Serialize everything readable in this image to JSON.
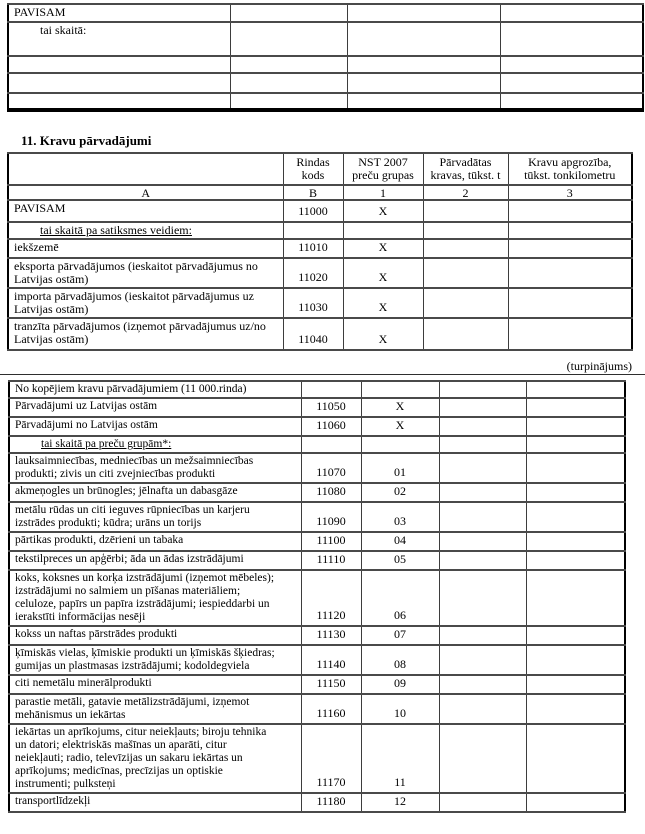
{
  "page": {
    "continuation_note": "(turpinājums)"
  },
  "top_table": {
    "rows": [
      {
        "label": "PAVISAM"
      },
      {
        "label": "tai skaitā:",
        "bold": true,
        "indent": 1
      },
      {
        "label": ""
      },
      {
        "label": ""
      },
      {
        "label": ""
      }
    ]
  },
  "section": {
    "title": "11. Kravu pārvadājumi"
  },
  "main_table": {
    "column_headers": [
      "",
      "Rindas\nkods",
      "NST 2007\npreču grupas",
      "Pārvadātas\nkravas, tūkst. t",
      "Kravu apgrozība,\ntūkst. tonkilometru"
    ],
    "letter_row": [
      "A",
      "B",
      "1",
      "2",
      "3"
    ],
    "rows": [
      {
        "label": "PAVISAM",
        "code": "11000",
        "group": "X"
      },
      {
        "label": "tai skaitā pa satiksmes veidiem:",
        "underline": true,
        "indent": 1
      },
      {
        "label": "iekšzemē",
        "code": "11010",
        "group": "X"
      },
      {
        "label": "eksporta pārvadājumos (ieskaitot pārvadājumus no\nLatvijas ostām)",
        "code": "11020",
        "group": "X"
      },
      {
        "label": "importa pārvadājumos (ieskaitot pārvadājumus uz\nLatvijas ostām)",
        "code": "11030",
        "group": "X"
      },
      {
        "label": "tranzīta pārvadājumos (izņemot pārvadājumus uz/no\nLatvijas ostām)",
        "code": "11040",
        "group": "X"
      }
    ]
  },
  "continuation_table": {
    "rows": [
      {
        "label": "No kopējiem kravu pārvadājumiem (11 000.rinda)"
      },
      {
        "label": "Pārvadājumi uz Latvijas ostām",
        "code": "11050",
        "group": "X"
      },
      {
        "label": "Pārvadājumi no Latvijas ostām",
        "code": "11060",
        "group": "X"
      },
      {
        "label": "tai skaitā pa preču grupām*:",
        "underline": true,
        "indent": 1
      },
      {
        "label": "lauksaimniecības, medniecības un mežsaimniecības\nprodukti; zivis un citi zvejniecības produkti",
        "code": "11070",
        "group": "01"
      },
      {
        "label": "akmeņogles un brūnogles; jēlnafta un dabasgāze",
        "code": "11080",
        "group": "02"
      },
      {
        "label": "metālu rūdas un citi ieguves rūpniecības un karjeru\nizstrādes produkti; kūdra; urāns un torijs",
        "code": "11090",
        "group": "03"
      },
      {
        "label": "pārtikas produkti, dzērieni un tabaka",
        "code": "11100",
        "group": "04"
      },
      {
        "label": "tekstilpreces un apģērbi; āda un ādas izstrādājumi",
        "code": "11110",
        "group": "05"
      },
      {
        "label": "koks, koksnes un korķa izstrādājumi (izņemot mēbeles);\nizstrādājumi no salmiem un pīšanas materiāliem;\nceluloze, papīrs un papīra izstrādājumi; iespieddarbi un\nierakstīti informācijas nesēji",
        "code": "11120",
        "group": "06"
      },
      {
        "label": "kokss un naftas pārstrādes produkti",
        "code": "11130",
        "group": "07"
      },
      {
        "label": "ķīmiskās vielas, ķīmiskie produkti un ķīmiskās šķiedras;\ngumijas un plastmasas izstrādājumi; kodoldegviela",
        "code": "11140",
        "group": "08"
      },
      {
        "label": "citi nemetālu minerālprodukti",
        "code": "11150",
        "group": "09"
      },
      {
        "label": "parastie metāli, gatavie metālizstrādājumi, izņemot\nmehānismus un iekārtas",
        "code": "11160",
        "group": "10"
      },
      {
        "label": "iekārtas un aprīkojums, citur neiekļauts; biroju tehnika\nun datori; elektriskās mašīnas un aparāti, citur\nneiekļauti; radio, televīzijas un sakaru iekārtas un\naprīkojums; medicīnas, precīzijas un optiskie\ninstrumenti; pulksteņi",
        "code": "11170",
        "group": "11"
      },
      {
        "label": "transportlīdzekļi",
        "code": "11180",
        "group": "12"
      }
    ]
  }
}
